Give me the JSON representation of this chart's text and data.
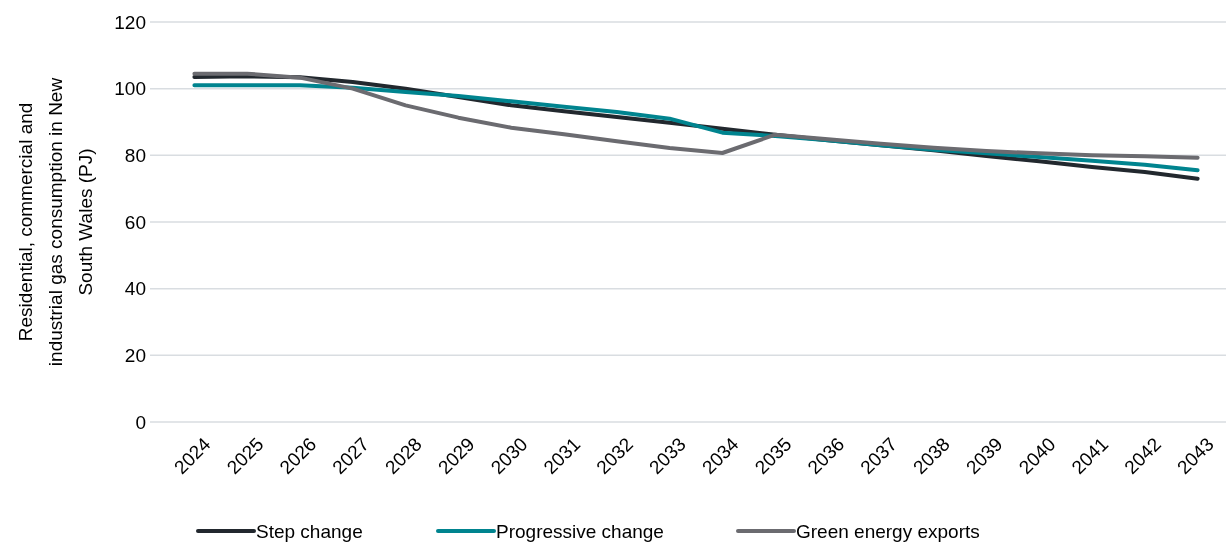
{
  "chart_data": {
    "type": "line",
    "ylabel": "Residential, commercial and industrial gas consumption in New South Wales (PJ)",
    "categories": [
      "2024",
      "2025",
      "2026",
      "2027",
      "2028",
      "2029",
      "2030",
      "2031",
      "2032",
      "2033",
      "2034",
      "2035",
      "2036",
      "2037",
      "2038",
      "2039",
      "2040",
      "2041",
      "2042",
      "2043"
    ],
    "series": [
      {
        "name": "Step change",
        "color": "#22282e",
        "values": [
          103.5,
          103.7,
          103.4,
          102,
          100,
          97.5,
          95,
          93.2,
          91.5,
          89.8,
          88,
          86.2,
          84.5,
          83,
          81.5,
          79.8,
          78.2,
          76.5,
          75,
          73
        ]
      },
      {
        "name": "Progressive change",
        "color": "#00848f",
        "values": [
          101,
          101,
          101,
          100.3,
          99,
          97.8,
          96.2,
          94.6,
          93,
          91,
          86.8,
          85.8,
          84.5,
          83,
          81.7,
          80.6,
          79.5,
          78.4,
          77.2,
          75.5
        ]
      },
      {
        "name": "Green energy exports",
        "color": "#6b6b70",
        "values": [
          104.5,
          104.5,
          103.3,
          100,
          95,
          91.3,
          88.3,
          86.3,
          84.2,
          82.2,
          80.7,
          86.2,
          84.8,
          83.5,
          82.3,
          81.3,
          80.6,
          80,
          79.7,
          79.3
        ]
      }
    ],
    "ylim": [
      0,
      120
    ],
    "yticks": [
      0,
      20,
      40,
      60,
      80,
      100,
      120
    ],
    "grid": "y",
    "legend": "bottom",
    "marker": "none",
    "line_style": "solid"
  }
}
